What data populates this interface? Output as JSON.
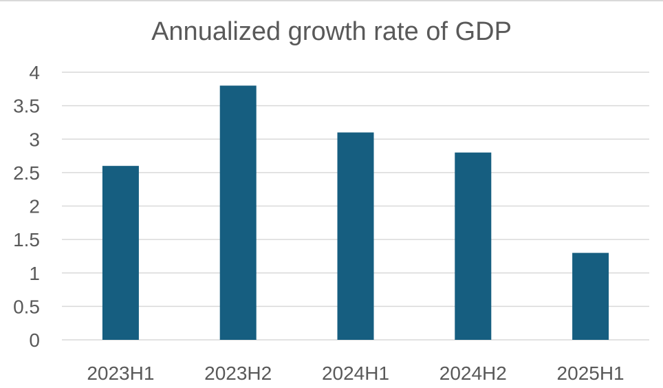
{
  "chart_data": {
    "type": "bar",
    "title": "Annualized growth rate of GDP",
    "categories": [
      "2023H1",
      "2023H2",
      "2024H1",
      "2024H2",
      "2025H1"
    ],
    "values": [
      2.6,
      3.8,
      3.1,
      2.8,
      1.3
    ],
    "y_ticks": [
      "0",
      "0.5",
      "1",
      "1.5",
      "2",
      "2.5",
      "3",
      "3.5",
      "4"
    ],
    "ylim": [
      0,
      4
    ],
    "xlabel": "",
    "ylabel": "",
    "grid": true,
    "legend": "none",
    "bar_color": "#165e80"
  }
}
